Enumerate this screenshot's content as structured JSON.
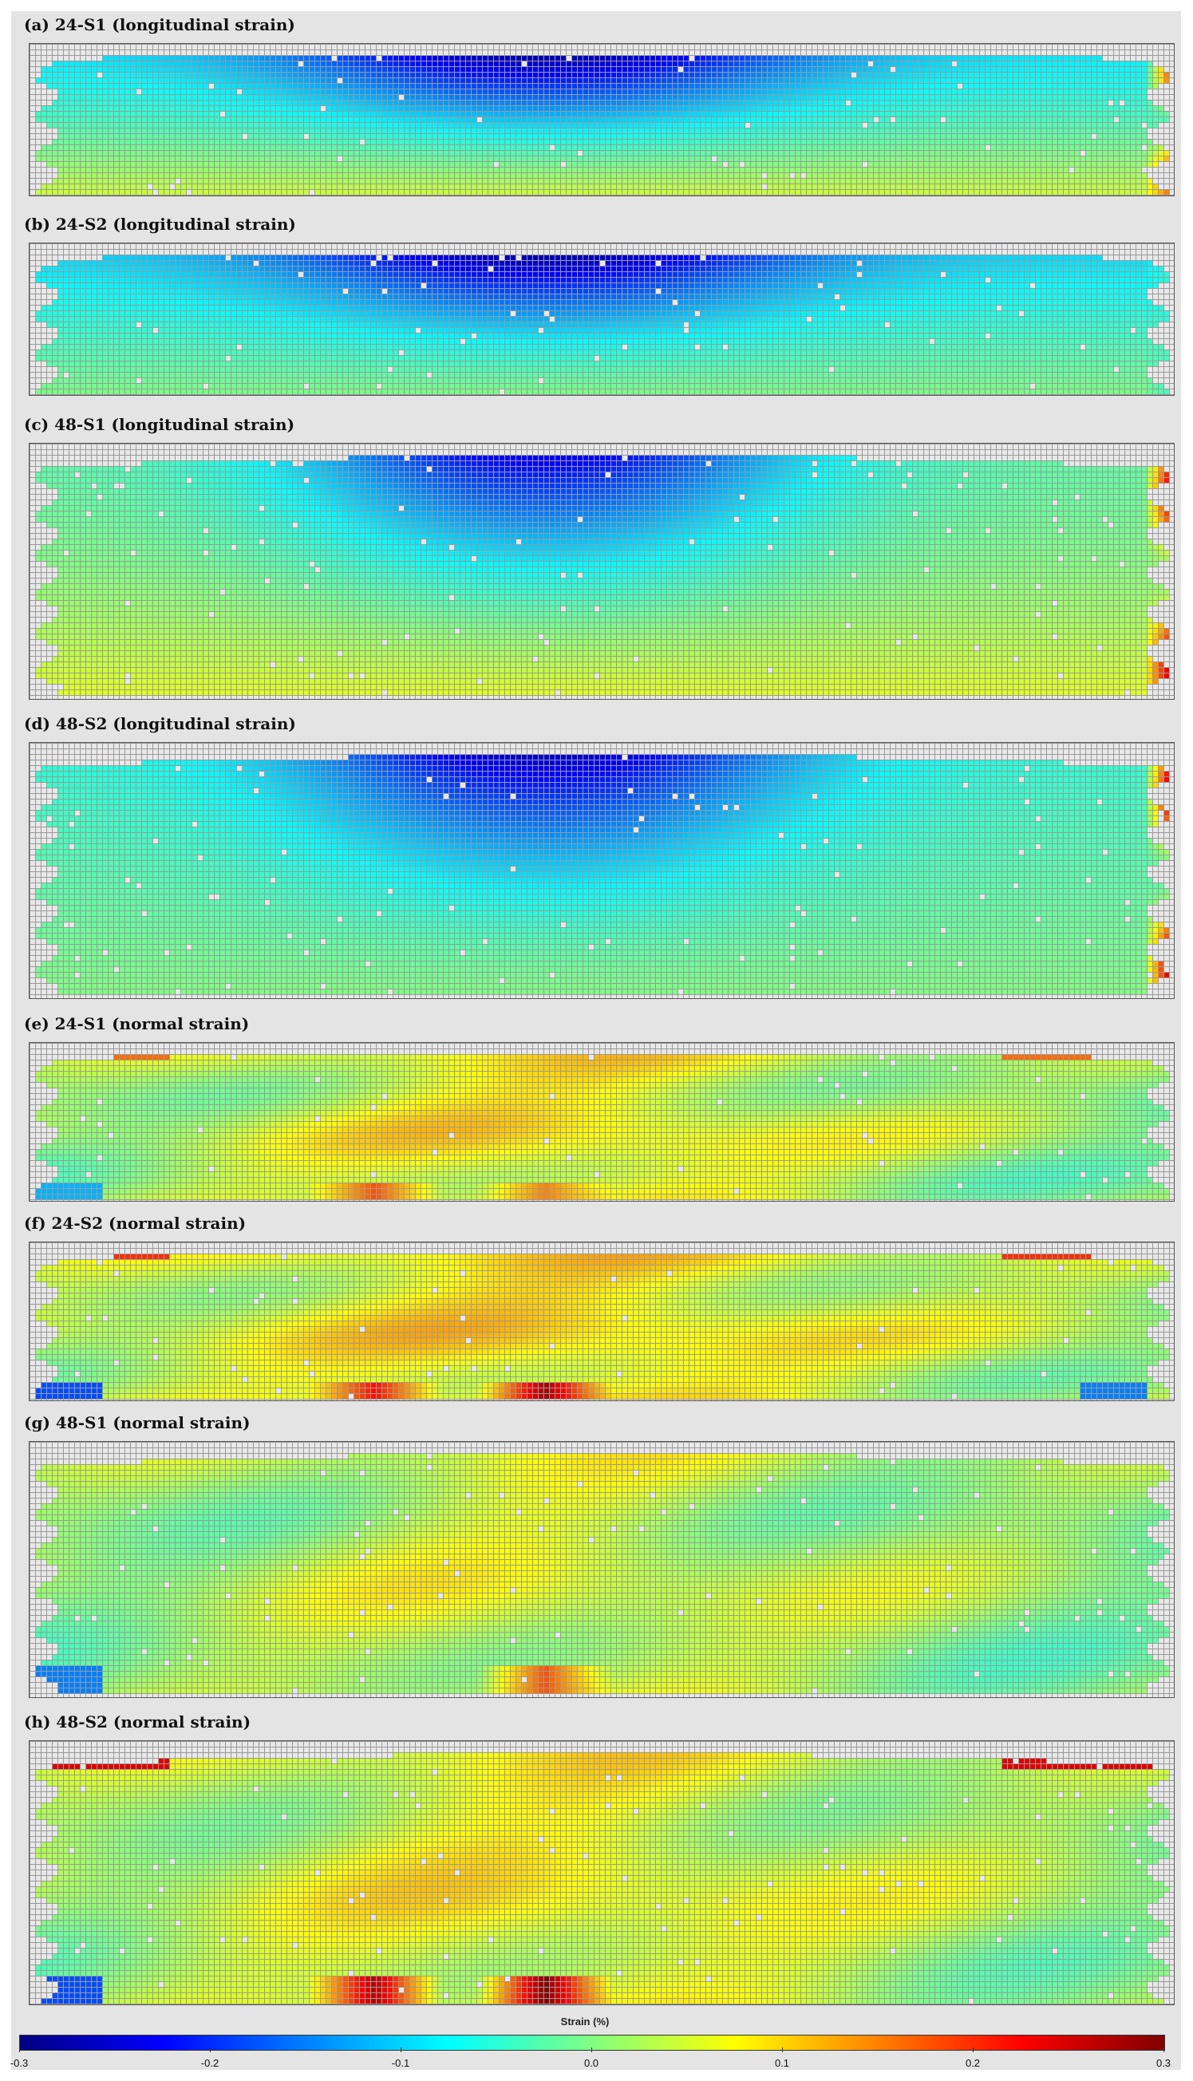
{
  "chart_data": [
    {
      "type": "heatmap",
      "title": "(a) 24-S1 (longitudinal strain)",
      "pattern": "longitudinal",
      "top_min": -0.3,
      "far_min": -0.09,
      "edge_bottom": 0.05,
      "right_edge": 0.2,
      "left_tint": 0.0
    },
    {
      "type": "heatmap",
      "title": "(b) 24-S2 (longitudinal strain)",
      "pattern": "longitudinal",
      "top_min": -0.3,
      "far_min": -0.1,
      "edge_bottom": 0.0,
      "right_edge": -0.05,
      "left_tint": 0.0
    },
    {
      "type": "heatmap",
      "title": "(c) 48-S1 (longitudinal strain)",
      "pattern": "longitudinal",
      "top_min": -0.25,
      "far_min": -0.02,
      "edge_bottom": 0.06,
      "right_edge": 0.28,
      "left_tint": 0.0
    },
    {
      "type": "heatmap",
      "title": "(d) 48-S2 (longitudinal strain)",
      "pattern": "longitudinal",
      "top_min": -0.27,
      "far_min": -0.05,
      "edge_bottom": 0.0,
      "right_edge": 0.3,
      "left_tint": 0.0
    },
    {
      "type": "heatmap",
      "title": "(e) 24-S1 (normal strain)",
      "pattern": "normal",
      "center": 0.08,
      "edge": 0.0,
      "hot_spots": [
        0.15,
        0.18
      ],
      "cold_spots": [
        -0.12
      ]
    },
    {
      "type": "heatmap",
      "title": "(f) 24-S2 (normal strain)",
      "pattern": "normal",
      "center": 0.09,
      "edge": 0.02,
      "hot_spots": [
        0.28,
        0.22
      ],
      "cold_spots": [
        -0.18,
        -0.15
      ]
    },
    {
      "type": "heatmap",
      "title": "(g) 48-S1 (normal strain)",
      "pattern": "normal",
      "center": 0.05,
      "edge": 0.0,
      "hot_spots": [
        0.18
      ],
      "cold_spots": [
        -0.15
      ]
    },
    {
      "type": "heatmap",
      "title": "(h) 48-S2 (normal strain)",
      "pattern": "normal",
      "center": 0.07,
      "edge": 0.01,
      "hot_spots": [
        0.3,
        0.27
      ],
      "cold_spots": [
        -0.18
      ]
    }
  ],
  "colorbar": {
    "title": "Strain (%)",
    "ticks": [
      "-0.3",
      "-0.2",
      "-0.1",
      "0.0",
      "0.1",
      "0.2",
      "0.3"
    ],
    "tick_values": [
      -0.3,
      -0.2,
      -0.1,
      0.0,
      0.1,
      0.2,
      0.3
    ],
    "range": [
      -0.3,
      0.3
    ],
    "colors": [
      "#000080",
      "#0000ff",
      "#0080ff",
      "#00ffff",
      "#80ff80",
      "#ffff00",
      "#ff8000",
      "#ff0000",
      "#800000"
    ]
  }
}
